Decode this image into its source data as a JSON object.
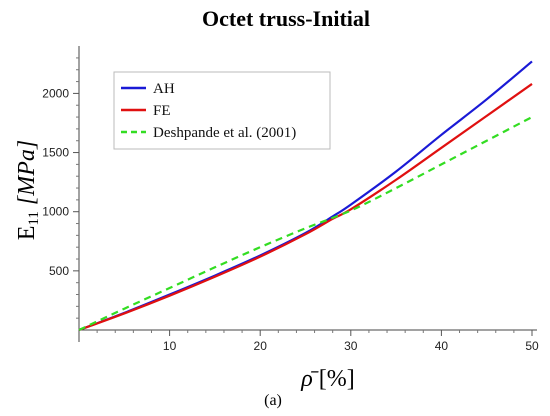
{
  "chart_data": {
    "type": "line",
    "title": "Octet truss-Initial",
    "ylabel": {
      "main": "E",
      "sub": "11",
      "unit": "[MPa]"
    },
    "xlabel": {
      "symbol": "ρ̄",
      "unit": "[%]"
    },
    "caption": "(a)",
    "xlim": [
      0,
      50
    ],
    "ylim": [
      0,
      2350
    ],
    "xticks": [
      10,
      20,
      30,
      40,
      50
    ],
    "yticks": [
      500,
      1000,
      1500,
      2000
    ],
    "grid": false,
    "legend_placement": "top-left",
    "series": [
      {
        "name": "AH",
        "color": "#1a1ad6",
        "dash": "solid",
        "x": [
          0,
          5,
          10,
          15,
          20,
          25,
          28,
          30,
          35,
          40,
          45,
          50
        ],
        "y": [
          0,
          145,
          300,
          460,
          630,
          820,
          960,
          1060,
          1340,
          1650,
          1950,
          2270
        ]
      },
      {
        "name": "FE",
        "color": "#e01010",
        "dash": "solid",
        "x": [
          0,
          5,
          10,
          15,
          20,
          25,
          28,
          30,
          35,
          40,
          45,
          50
        ],
        "y": [
          0,
          140,
          290,
          450,
          620,
          810,
          940,
          1020,
          1270,
          1540,
          1810,
          2080
        ]
      },
      {
        "name": "Deshpande et al. (2001)",
        "color": "#33dd22",
        "dash": "dashed",
        "x": [
          0,
          5,
          10,
          15,
          20,
          25,
          30,
          35,
          40,
          45,
          50
        ],
        "y": [
          0,
          180,
          355,
          530,
          700,
          860,
          1010,
          1200,
          1400,
          1600,
          1800
        ]
      }
    ]
  }
}
